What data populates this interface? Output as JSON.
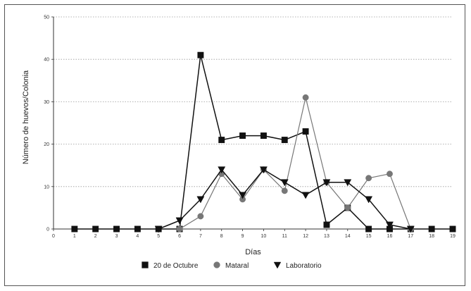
{
  "chart_data": {
    "type": "line",
    "title": "",
    "xlabel": "Días",
    "ylabel": "Número de huevos/Colonia",
    "xlim": [
      0,
      19
    ],
    "ylim": [
      0,
      50
    ],
    "x_ticks": [
      0,
      1,
      2,
      3,
      4,
      5,
      6,
      7,
      8,
      9,
      10,
      11,
      12,
      13,
      14,
      15,
      16,
      17,
      18,
      19
    ],
    "y_ticks": [
      0,
      10,
      20,
      30,
      40,
      50
    ],
    "grid": "horizontal-dotted",
    "legend_position": "bottom-center",
    "series": [
      {
        "name": "20 de Octubre",
        "marker": "square",
        "color": "#111111",
        "x": [
          1,
          2,
          3,
          4,
          5,
          6,
          7,
          8,
          9,
          10,
          11,
          12,
          13,
          14,
          15,
          16,
          17,
          18,
          19
        ],
        "values": [
          0,
          0,
          0,
          0,
          0,
          0,
          41,
          21,
          22,
          22,
          21,
          23,
          1,
          5,
          0,
          0,
          0,
          0,
          0
        ]
      },
      {
        "name": "Mataral",
        "marker": "circle",
        "color": "#777777",
        "x": [
          6,
          7,
          8,
          9,
          10,
          11,
          12,
          13,
          14,
          15,
          16,
          17
        ],
        "values": [
          0,
          3,
          13,
          7,
          14,
          9,
          31,
          11,
          5,
          12,
          13,
          0
        ]
      },
      {
        "name": "Laboratorio",
        "marker": "triangle-down",
        "color": "#111111",
        "x": [
          5,
          6,
          7,
          8,
          9,
          10,
          11,
          12,
          13,
          14,
          15,
          16,
          17
        ],
        "values": [
          0,
          2,
          7,
          14,
          8,
          14,
          11,
          8,
          11,
          11,
          7,
          1,
          0
        ]
      }
    ]
  }
}
